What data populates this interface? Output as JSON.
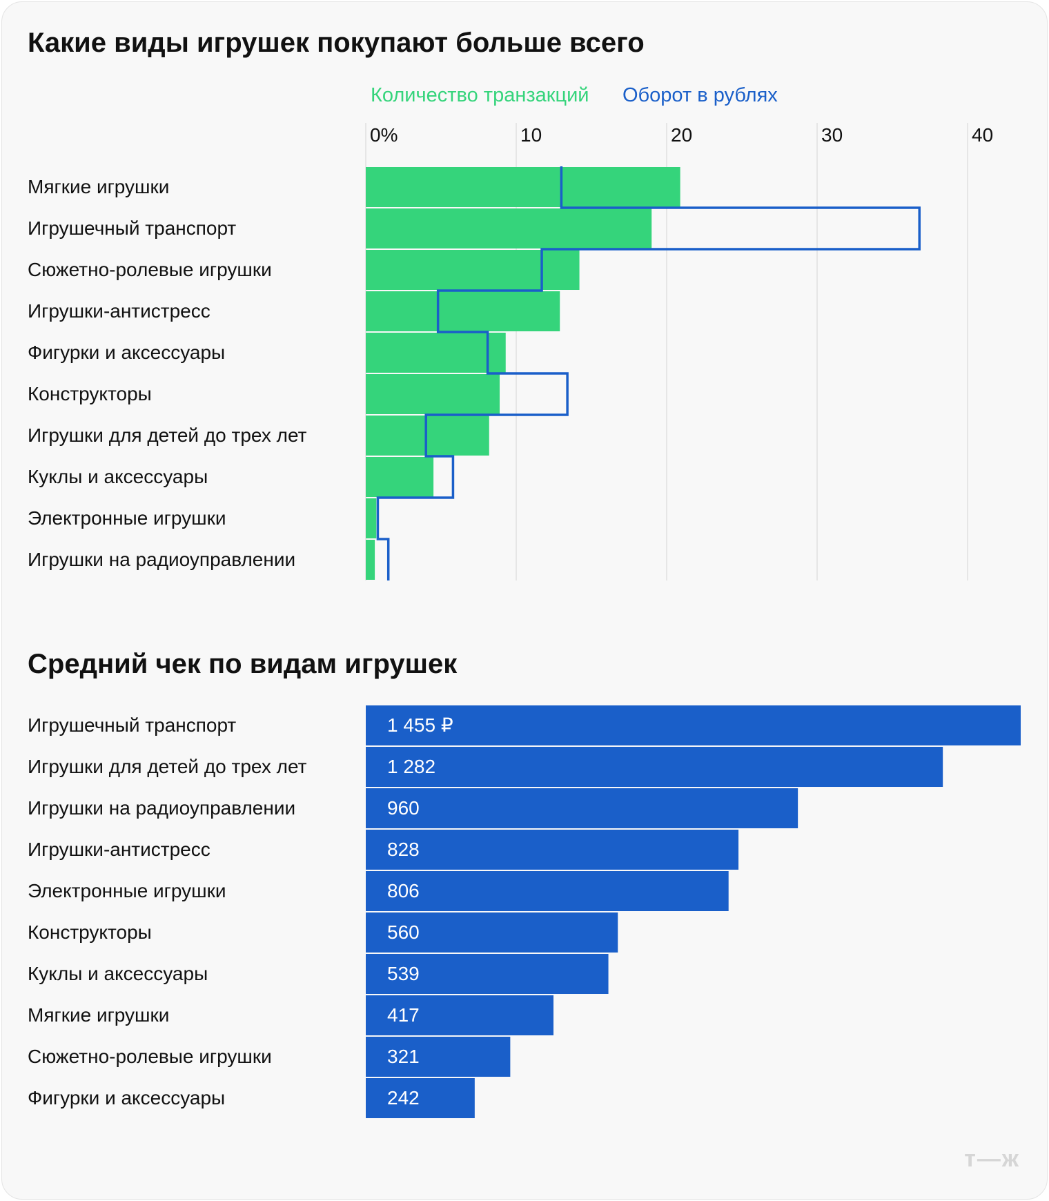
{
  "chart_data": [
    {
      "type": "bar",
      "title": "Какие виды игрушек покупают больше всего",
      "categories": [
        "Мягкие игрушки",
        "Игрушечный транспорт",
        "Сюжетно-ролевые игрушки",
        "Игрушки-антистресс",
        "Фигурки и аксессуары",
        "Конструкторы",
        "Игрушки для детей до трех лет",
        "Куклы и аксессуары",
        "Электронные игрушки",
        "Игрушки на радиоуправлении"
      ],
      "series": [
        {
          "name": "Количество транзакций",
          "color": "#35d47b",
          "style": "filled-bar",
          "values": [
            20.9,
            19.0,
            14.2,
            12.9,
            9.3,
            8.9,
            8.2,
            4.5,
            0.7,
            0.6
          ]
        },
        {
          "name": "Оборот в рублях",
          "color": "#1a5fc9",
          "style": "step-outline",
          "values": [
            13.0,
            36.8,
            11.7,
            4.8,
            8.1,
            13.4,
            4.0,
            5.8,
            0.8,
            1.5
          ]
        }
      ],
      "xticks": [
        "0%",
        "10",
        "20",
        "30",
        "40"
      ],
      "xlim": [
        0,
        40
      ],
      "grid": true,
      "legend": "top"
    },
    {
      "type": "bar",
      "title": "Средний чек по видам игрушек",
      "categories": [
        "Игрушечный транспорт",
        "Игрушки для детей до трех лет",
        "Игрушки на радиоуправлении",
        "Игрушки-антистресс",
        "Электронные игрушки",
        "Конструкторы",
        "Куклы и аксессуары",
        "Мягкие игрушки",
        "Сюжетно-ролевые игрушки",
        "Фигурки и аксессуары"
      ],
      "values": [
        1455,
        1282,
        960,
        828,
        806,
        560,
        539,
        417,
        321,
        242
      ],
      "data_labels": [
        "1 455 ₽",
        "1 282",
        "960",
        "828",
        "806",
        "560",
        "539",
        "417",
        "321",
        "242"
      ],
      "color": "#1a5fc9"
    }
  ],
  "logo": "т—ж"
}
